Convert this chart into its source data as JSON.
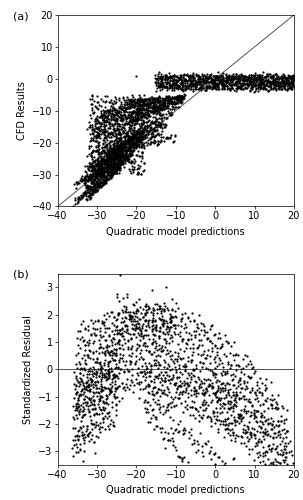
{
  "title_a": "(a)",
  "title_b": "(b)",
  "xlabel": "Quadratic model predictions",
  "ylabel_a": "CFD Results",
  "ylabel_b": "Standardized Residual",
  "xlim_a": [
    -40,
    20
  ],
  "ylim_a": [
    -40,
    20
  ],
  "xlim_b": [
    -40,
    20
  ],
  "ylim_b": [
    -3.5,
    3.5
  ],
  "xticks_a": [
    -40,
    -30,
    -20,
    -10,
    0,
    10,
    20
  ],
  "yticks_a": [
    -40,
    -30,
    -20,
    -10,
    0,
    10,
    20
  ],
  "xticks_b": [
    -40,
    -30,
    -20,
    -10,
    0,
    10,
    20
  ],
  "yticks_b": [
    -3,
    -2,
    -1,
    0,
    1,
    2,
    3
  ],
  "dot_size": 2.5,
  "dot_color": "#000000",
  "line_color": "#555555",
  "bg_color": "#ffffff",
  "font_size": 7,
  "label_font_size": 7,
  "n_streak_points": 80,
  "outlier_b_x": -22.5,
  "outlier_b_y": 2.75
}
